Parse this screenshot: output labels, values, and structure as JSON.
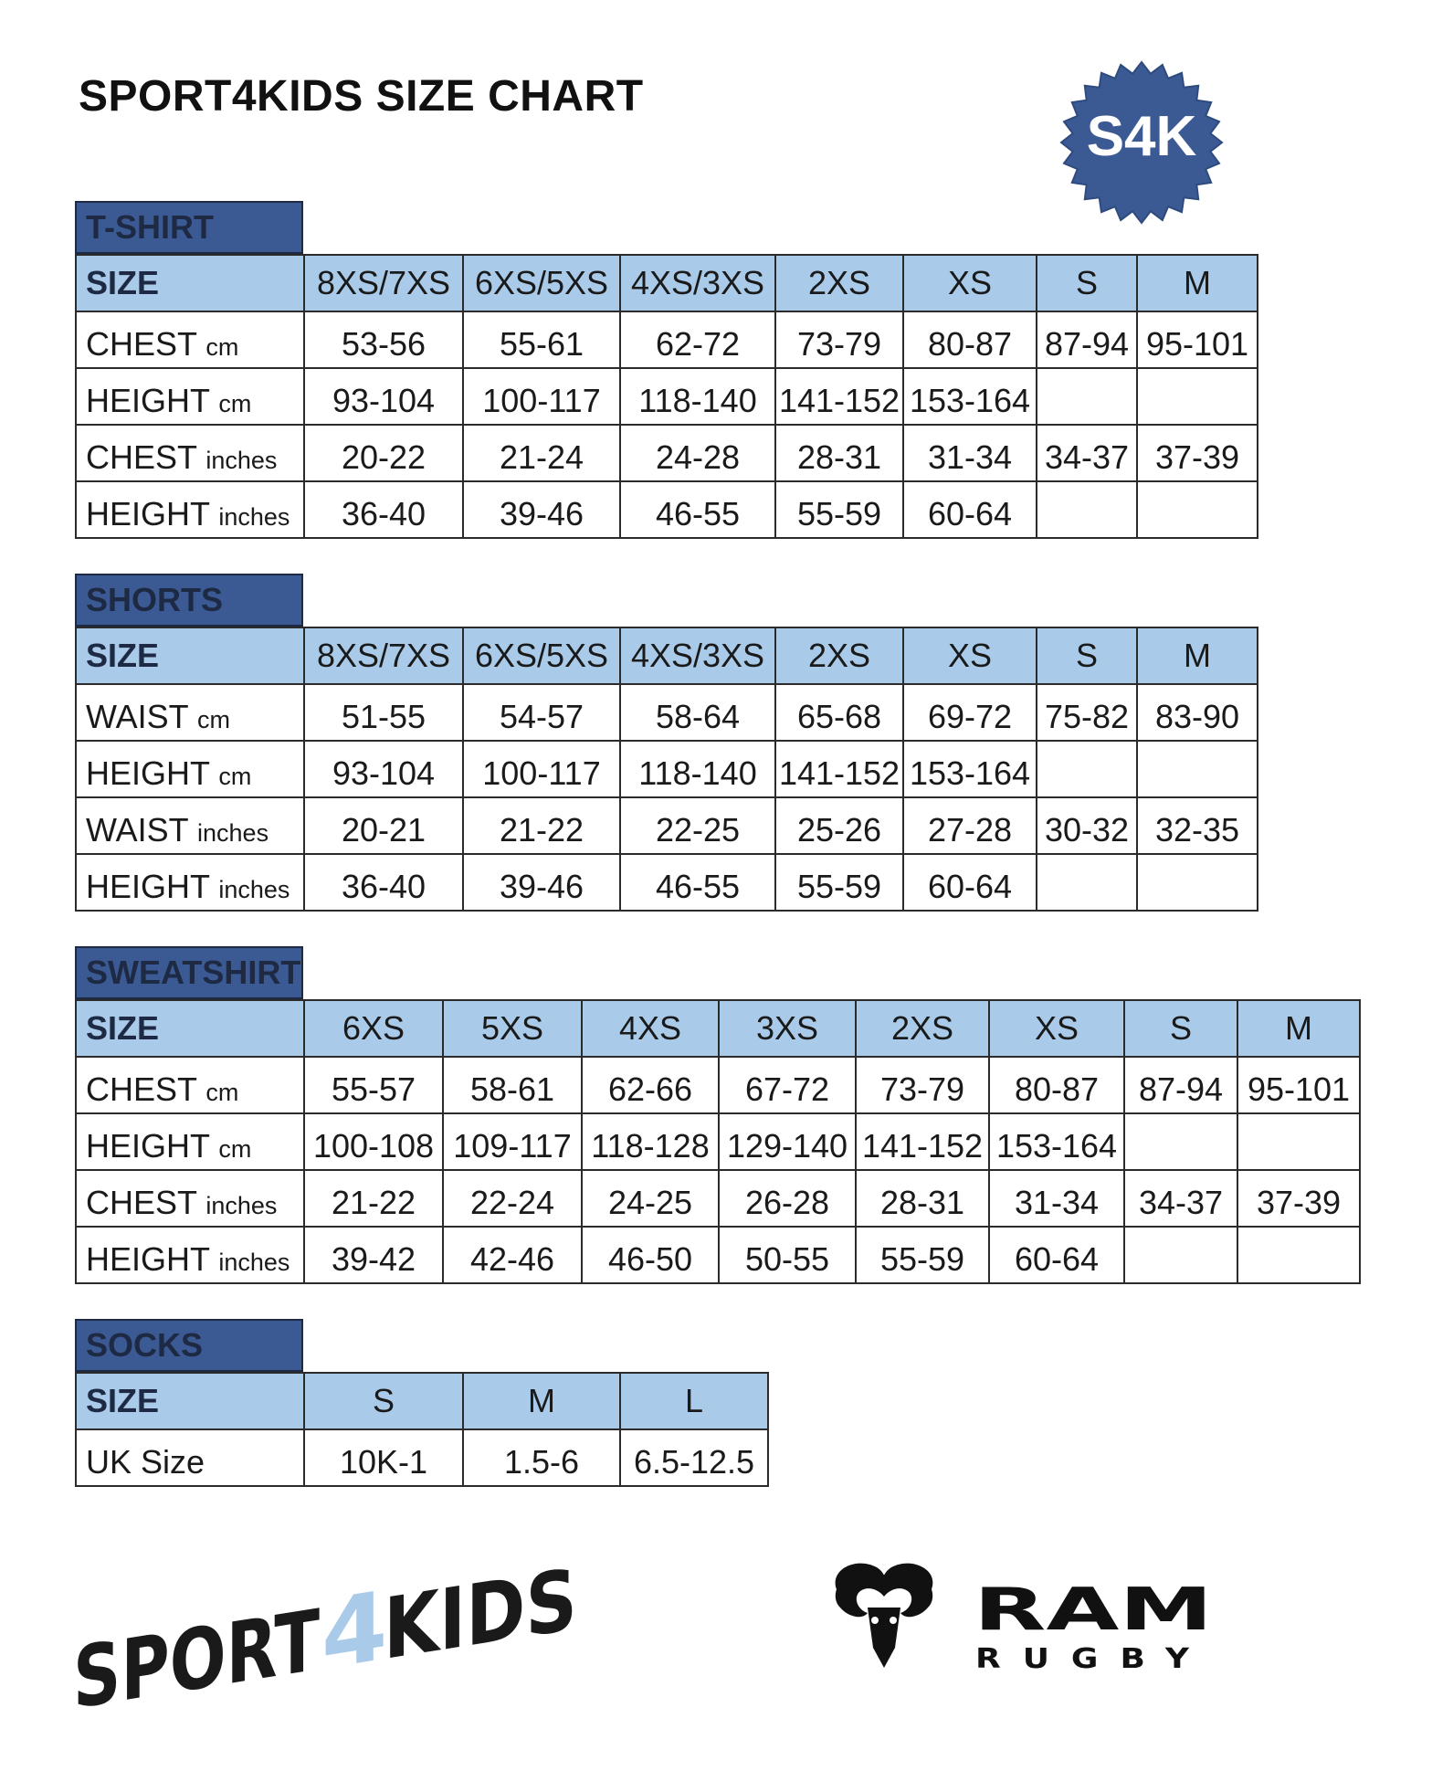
{
  "title": "SPORT4KIDS SIZE CHART",
  "badge": {
    "text": "S4K",
    "icon": "s4k-badge-icon",
    "color": "#3b5a93",
    "text_color": "#ffffff",
    "accent": "#a9cbe9"
  },
  "colors": {
    "header_dark": "#3b5a93",
    "header_light": "#a9cbe9",
    "grid": "#2b2b2b"
  },
  "tshirt": {
    "name": "T-SHIRT",
    "size_label": "SIZE",
    "sizes": [
      "8XS/7XS",
      "6XS/5XS",
      "4XS/3XS",
      "2XS",
      "XS",
      "S",
      "M"
    ],
    "rows": [
      {
        "label": "CHEST",
        "unit": "cm",
        "values": [
          "53-56",
          "55-61",
          "62-72",
          "73-79",
          "80-87",
          "87-94",
          "95-101"
        ]
      },
      {
        "label": "HEIGHT",
        "unit": "cm",
        "values": [
          "93-104",
          "100-117",
          "118-140",
          "141-152",
          "153-164",
          "",
          ""
        ]
      },
      {
        "label": "CHEST",
        "unit": "inches",
        "values": [
          "20-22",
          "21-24",
          "24-28",
          "28-31",
          "31-34",
          "34-37",
          "37-39"
        ]
      },
      {
        "label": "HEIGHT",
        "unit": "inches",
        "values": [
          "36-40",
          "39-46",
          "46-55",
          "55-59",
          "60-64",
          "",
          ""
        ]
      }
    ]
  },
  "shorts": {
    "name": "SHORTS",
    "size_label": "SIZE",
    "sizes": [
      "8XS/7XS",
      "6XS/5XS",
      "4XS/3XS",
      "2XS",
      "XS",
      "S",
      "M"
    ],
    "rows": [
      {
        "label": "WAIST",
        "unit": "cm",
        "values": [
          "51-55",
          "54-57",
          "58-64",
          "65-68",
          "69-72",
          "75-82",
          "83-90"
        ]
      },
      {
        "label": "HEIGHT",
        "unit": "cm",
        "values": [
          "93-104",
          "100-117",
          "118-140",
          "141-152",
          "153-164",
          "",
          ""
        ]
      },
      {
        "label": "WAIST",
        "unit": "inches",
        "values": [
          "20-21",
          "21-22",
          "22-25",
          "25-26",
          "27-28",
          "30-32",
          "32-35"
        ]
      },
      {
        "label": "HEIGHT",
        "unit": "inches",
        "values": [
          "36-40",
          "39-46",
          "46-55",
          "55-59",
          "60-64",
          "",
          ""
        ]
      }
    ]
  },
  "sweatshirt": {
    "name": "SWEATSHIRT",
    "size_label": "SIZE",
    "sizes": [
      "6XS",
      "5XS",
      "4XS",
      "3XS",
      "2XS",
      "XS",
      "S",
      "M"
    ],
    "rows": [
      {
        "label": "CHEST",
        "unit": "cm",
        "values": [
          "55-57",
          "58-61",
          "62-66",
          "67-72",
          "73-79",
          "80-87",
          "87-94",
          "95-101"
        ]
      },
      {
        "label": "HEIGHT",
        "unit": "cm",
        "values": [
          "100-108",
          "109-117",
          "118-128",
          "129-140",
          "141-152",
          "153-164",
          "",
          ""
        ]
      },
      {
        "label": "CHEST",
        "unit": "inches",
        "values": [
          "21-22",
          "22-24",
          "24-25",
          "26-28",
          "28-31",
          "31-34",
          "34-37",
          "37-39"
        ]
      },
      {
        "label": "HEIGHT",
        "unit": "inches",
        "values": [
          "39-42",
          "42-46",
          "46-50",
          "50-55",
          "55-59",
          "60-64",
          "",
          ""
        ]
      }
    ]
  },
  "socks": {
    "name": "SOCKS",
    "size_label": "SIZE",
    "sizes": [
      "S",
      "M",
      "L"
    ],
    "rows": [
      {
        "label": "UK Size",
        "unit": "",
        "values": [
          "10K-1",
          "1.5-6",
          "6.5-12.5"
        ]
      }
    ]
  },
  "footer": {
    "sport4kids_logo": {
      "text_a": "SPORT",
      "text_b": "4",
      "text_c": "KIDS",
      "icon": "sport4kids-logo",
      "color": "#1a1a1a",
      "accent": "#a9cbe9"
    },
    "ram_logo": {
      "word": "RAM",
      "sub": "RUGBY",
      "icon": "ram-head-icon",
      "color": "#111111"
    }
  }
}
